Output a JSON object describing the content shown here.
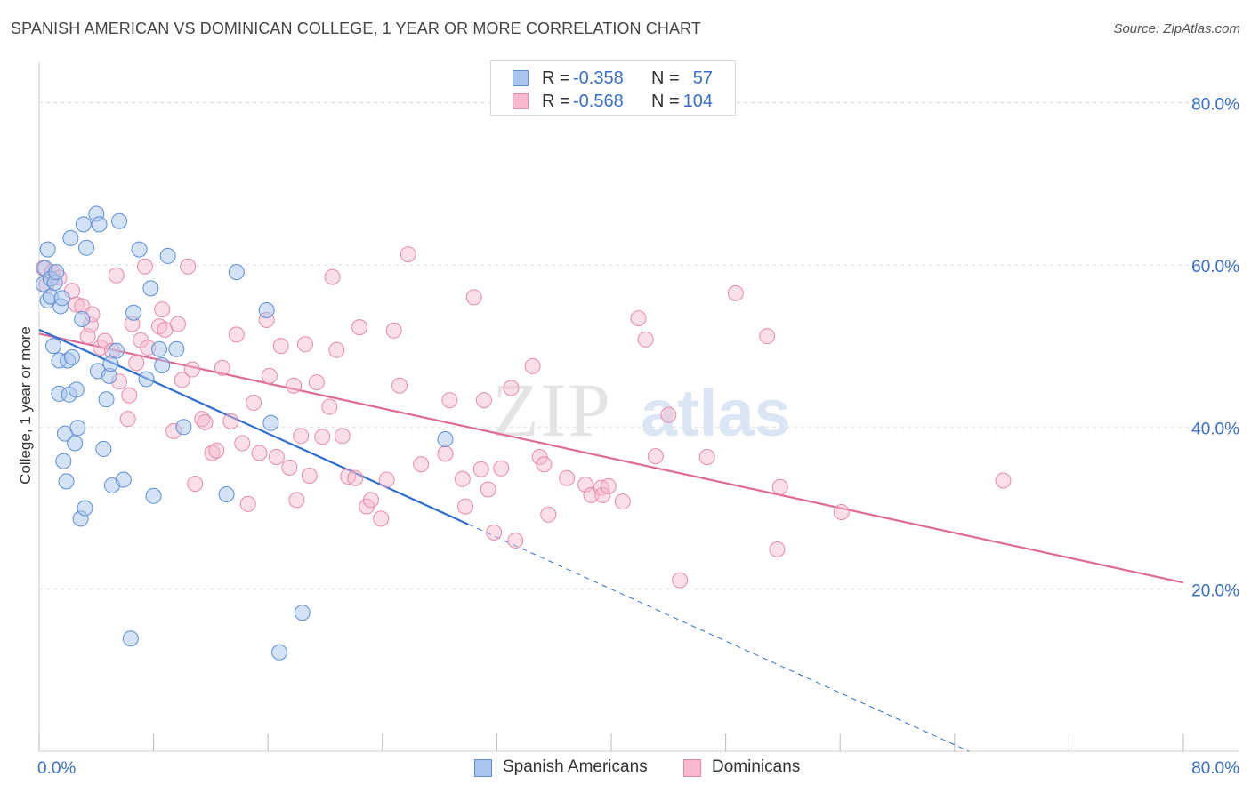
{
  "title": "SPANISH AMERICAN VS DOMINICAN COLLEGE, 1 YEAR OR MORE CORRELATION CHART",
  "source": "Source: ZipAtlas.com",
  "watermark": {
    "part1": "ZIP",
    "part2": "atlas"
  },
  "legend": {
    "rows": [
      {
        "r_label": "R =",
        "r_value": "-0.358",
        "n_label": "N =",
        "n_value": "57"
      },
      {
        "r_label": "R =",
        "r_value": "-0.568",
        "n_label": "N =",
        "n_value": "104"
      }
    ]
  },
  "bottom_legend": [
    "Spanish Americans",
    "Dominicans"
  ],
  "colors": {
    "blue_fill": "#a9c6ee",
    "blue_stroke": "#5b8ed6",
    "blue_line": "#2f6fd0",
    "pink_fill": "#f6b9cd",
    "pink_stroke": "#e58aa9",
    "pink_line": "#e06a93",
    "axis_label": "#3a6fc8",
    "grid": "#dddddd"
  },
  "chart_data": {
    "type": "scatter",
    "title": "SPANISH AMERICAN VS DOMINICAN COLLEGE, 1 YEAR OR MORE CORRELATION CHART",
    "xlabel": "",
    "ylabel": "College, 1 year or more",
    "xlim": [
      0,
      80
    ],
    "ylim": [
      0,
      85
    ],
    "x_tick_labels": [
      "0.0%",
      "80.0%"
    ],
    "y_ticks": [
      20,
      40,
      60,
      80
    ],
    "y_tick_labels": [
      "20.0%",
      "40.0%",
      "60.0%",
      "80.0%"
    ],
    "grid": "horizontal dashed",
    "legend_position": "top-center",
    "series": [
      {
        "name": "Spanish Americans",
        "r": -0.358,
        "n": 57,
        "trend": {
          "x": [
            0,
            30
          ],
          "y": [
            52.0,
            28.0
          ],
          "dashed_to": [
            65,
            0
          ]
        },
        "points": [
          [
            0.3,
            57.6
          ],
          [
            0.4,
            59.6
          ],
          [
            0.6,
            55.6
          ],
          [
            0.6,
            61.9
          ],
          [
            0.8,
            56.1
          ],
          [
            0.8,
            58.3
          ],
          [
            1.0,
            50.0
          ],
          [
            1.1,
            57.8
          ],
          [
            1.2,
            59.1
          ],
          [
            1.4,
            44.1
          ],
          [
            1.4,
            48.2
          ],
          [
            1.5,
            54.9
          ],
          [
            1.6,
            55.9
          ],
          [
            1.7,
            35.8
          ],
          [
            1.8,
            39.2
          ],
          [
            1.9,
            33.3
          ],
          [
            2.0,
            48.2
          ],
          [
            2.1,
            44.0
          ],
          [
            2.2,
            63.3
          ],
          [
            2.3,
            48.6
          ],
          [
            2.5,
            38.0
          ],
          [
            2.6,
            44.6
          ],
          [
            2.7,
            39.9
          ],
          [
            2.9,
            28.7
          ],
          [
            3.0,
            53.3
          ],
          [
            3.1,
            65.0
          ],
          [
            3.2,
            30.0
          ],
          [
            3.3,
            62.1
          ],
          [
            4.0,
            66.3
          ],
          [
            4.1,
            46.9
          ],
          [
            4.2,
            65.0
          ],
          [
            4.5,
            37.3
          ],
          [
            4.7,
            43.4
          ],
          [
            4.9,
            46.3
          ],
          [
            5.0,
            47.8
          ],
          [
            5.1,
            32.8
          ],
          [
            5.4,
            49.4
          ],
          [
            5.6,
            65.4
          ],
          [
            5.9,
            33.5
          ],
          [
            6.4,
            13.9
          ],
          [
            6.6,
            54.1
          ],
          [
            7.0,
            61.9
          ],
          [
            7.5,
            45.9
          ],
          [
            7.8,
            57.1
          ],
          [
            8.0,
            31.5
          ],
          [
            8.4,
            49.6
          ],
          [
            8.6,
            47.6
          ],
          [
            9.0,
            61.1
          ],
          [
            9.6,
            49.6
          ],
          [
            10.1,
            40.0
          ],
          [
            13.1,
            31.7
          ],
          [
            13.8,
            59.1
          ],
          [
            15.9,
            54.4
          ],
          [
            16.2,
            40.5
          ],
          [
            16.8,
            12.2
          ],
          [
            18.4,
            17.1
          ],
          [
            28.4,
            38.5
          ]
        ]
      },
      {
        "name": "Dominicans",
        "r": -0.568,
        "n": 104,
        "trend": {
          "x": [
            0,
            80
          ],
          "y": [
            51.5,
            20.8
          ]
        },
        "points": [
          [
            0.3,
            59.6
          ],
          [
            0.5,
            57.5
          ],
          [
            0.9,
            59.1
          ],
          [
            1.4,
            58.4
          ],
          [
            2.3,
            56.8
          ],
          [
            2.6,
            55.1
          ],
          [
            3.0,
            54.9
          ],
          [
            3.4,
            51.2
          ],
          [
            3.6,
            52.6
          ],
          [
            3.7,
            53.9
          ],
          [
            4.3,
            49.8
          ],
          [
            4.6,
            50.6
          ],
          [
            5.1,
            49.4
          ],
          [
            5.4,
            58.7
          ],
          [
            5.6,
            45.6
          ],
          [
            6.3,
            43.9
          ],
          [
            6.5,
            52.7
          ],
          [
            6.8,
            47.9
          ],
          [
            7.1,
            50.7
          ],
          [
            7.4,
            59.8
          ],
          [
            7.6,
            49.8
          ],
          [
            8.4,
            52.4
          ],
          [
            8.6,
            54.5
          ],
          [
            8.8,
            52.0
          ],
          [
            9.4,
            39.5
          ],
          [
            9.7,
            52.7
          ],
          [
            10.0,
            45.8
          ],
          [
            10.4,
            59.8
          ],
          [
            10.7,
            47.1
          ],
          [
            11.4,
            41.0
          ],
          [
            11.6,
            40.6
          ],
          [
            12.1,
            36.8
          ],
          [
            12.4,
            37.1
          ],
          [
            12.8,
            47.3
          ],
          [
            13.4,
            40.7
          ],
          [
            13.8,
            51.4
          ],
          [
            14.2,
            38.0
          ],
          [
            14.6,
            30.5
          ],
          [
            15.0,
            43.0
          ],
          [
            15.4,
            36.8
          ],
          [
            15.9,
            53.2
          ],
          [
            16.1,
            46.3
          ],
          [
            16.6,
            36.3
          ],
          [
            16.9,
            50.0
          ],
          [
            17.5,
            35.0
          ],
          [
            17.8,
            45.1
          ],
          [
            18.0,
            31.0
          ],
          [
            18.3,
            38.9
          ],
          [
            18.6,
            50.2
          ],
          [
            18.9,
            34.0
          ],
          [
            19.4,
            45.5
          ],
          [
            19.8,
            38.8
          ],
          [
            20.3,
            42.5
          ],
          [
            20.5,
            58.5
          ],
          [
            20.8,
            49.5
          ],
          [
            21.2,
            38.9
          ],
          [
            21.6,
            33.9
          ],
          [
            22.1,
            33.7
          ],
          [
            22.4,
            52.3
          ],
          [
            22.9,
            30.2
          ],
          [
            23.2,
            31.0
          ],
          [
            23.9,
            28.7
          ],
          [
            24.8,
            51.9
          ],
          [
            25.2,
            45.1
          ],
          [
            25.8,
            61.3
          ],
          [
            26.7,
            35.4
          ],
          [
            28.4,
            36.7
          ],
          [
            28.7,
            43.3
          ],
          [
            29.6,
            33.6
          ],
          [
            29.8,
            30.2
          ],
          [
            30.4,
            56.0
          ],
          [
            30.9,
            34.8
          ],
          [
            31.1,
            43.3
          ],
          [
            31.4,
            32.3
          ],
          [
            31.8,
            27.0
          ],
          [
            32.3,
            34.9
          ],
          [
            33.0,
            44.8
          ],
          [
            33.3,
            26.0
          ],
          [
            35.0,
            36.3
          ],
          [
            35.3,
            35.4
          ],
          [
            35.6,
            29.2
          ],
          [
            36.9,
            33.7
          ],
          [
            38.2,
            32.9
          ],
          [
            38.6,
            31.6
          ],
          [
            39.3,
            32.5
          ],
          [
            39.4,
            31.6
          ],
          [
            39.8,
            32.7
          ],
          [
            40.8,
            30.8
          ],
          [
            41.9,
            53.4
          ],
          [
            42.4,
            50.8
          ],
          [
            43.1,
            36.4
          ],
          [
            44.8,
            21.1
          ],
          [
            46.7,
            36.3
          ],
          [
            48.7,
            56.5
          ],
          [
            51.6,
            24.9
          ],
          [
            51.8,
            32.6
          ],
          [
            50.9,
            51.2
          ],
          [
            56.1,
            29.5
          ],
          [
            67.4,
            33.4
          ],
          [
            6.2,
            41.0
          ],
          [
            10.9,
            33.0
          ],
          [
            24.3,
            33.5
          ],
          [
            34.5,
            47.5
          ],
          [
            44.0,
            41.5
          ]
        ]
      }
    ]
  }
}
